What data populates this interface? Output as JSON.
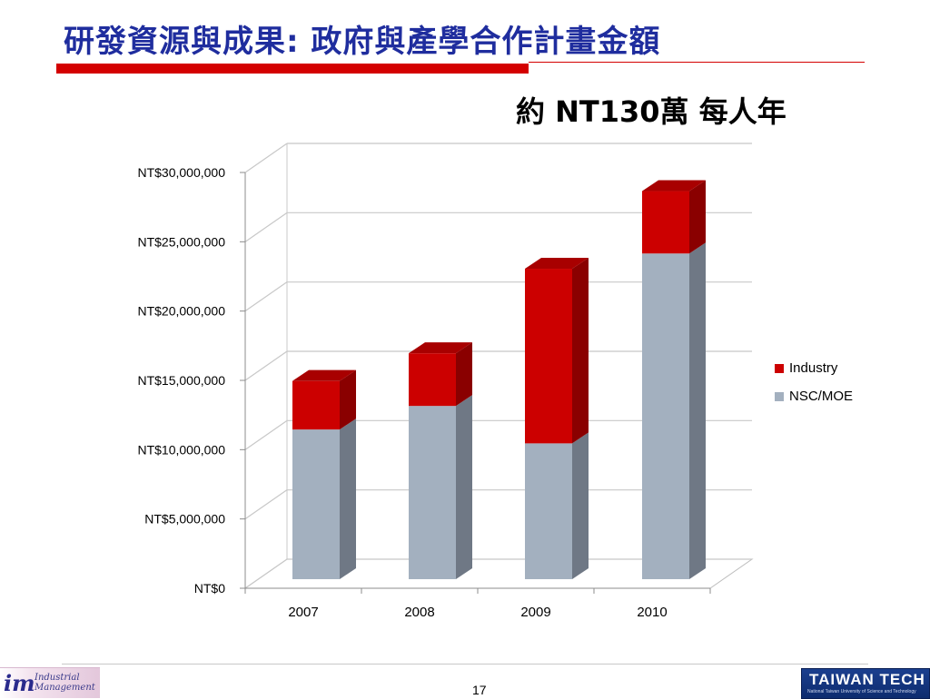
{
  "slide": {
    "title": "研發資源與成果: 政府與產學合作計畫金額",
    "subtitle": "約 NT130萬 每人年",
    "page_number": "17"
  },
  "logos": {
    "left_mark": "im",
    "left_line1": "Industrial",
    "left_line2": "Management",
    "right_name": "TAIWAN TECH",
    "right_sub": "National Taiwan University of Science and Technology"
  },
  "colors": {
    "title": "#1f2d9e",
    "accent_bar": "#d40000",
    "industry": "#cc0000",
    "nsc_moe": "#a3b0bf"
  },
  "chart_data": {
    "type": "bar",
    "stacked": true,
    "three_d": true,
    "categories": [
      "2007",
      "2008",
      "2009",
      "2010"
    ],
    "series": [
      {
        "name": "NSC/MOE",
        "color": "#a3b0bf",
        "values": [
          10800000,
          12500000,
          9800000,
          23500000
        ]
      },
      {
        "name": "Industry",
        "color": "#cc0000",
        "values": [
          3500000,
          3800000,
          12600000,
          4500000
        ]
      }
    ],
    "y_ticks": [
      "NT$0",
      "NT$5,000,000",
      "NT$10,000,000",
      "NT$15,000,000",
      "NT$20,000,000",
      "NT$25,000,000",
      "NT$30,000,000"
    ],
    "ylim": [
      0,
      30000000
    ],
    "grid": true,
    "legend_position": "right"
  }
}
